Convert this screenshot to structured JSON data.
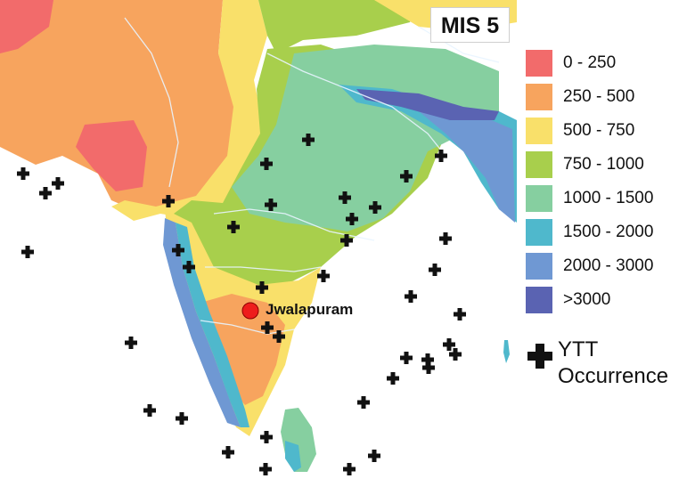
{
  "title": "MIS 5",
  "legend": {
    "items": [
      {
        "label": "0 - 250",
        "color": "#f26b6b"
      },
      {
        "label": "250 - 500",
        "color": "#f7a45e"
      },
      {
        "label": "500 - 750",
        "color": "#f9e06a"
      },
      {
        "label": "750 - 1000",
        "color": "#a8cf4c"
      },
      {
        "label": "1000 - 1500",
        "color": "#86cfa0"
      },
      {
        "label": "1500 - 2000",
        "color": "#4fb8cc"
      },
      {
        "label": "2000 - 3000",
        "color": "#6f98d3"
      },
      {
        "label": ">3000",
        "color": "#5a63b2"
      }
    ]
  },
  "ytt_legend": {
    "line1": "YTT",
    "line2": "Occurrence",
    "icon": "plus-marker-icon"
  },
  "site": {
    "label": "Jwalapuram",
    "marker_color": "#ee1c1c"
  },
  "colors": {
    "ocean": "#ffffff",
    "rivers": "#e8f4ff",
    "marker": "#111111"
  }
}
